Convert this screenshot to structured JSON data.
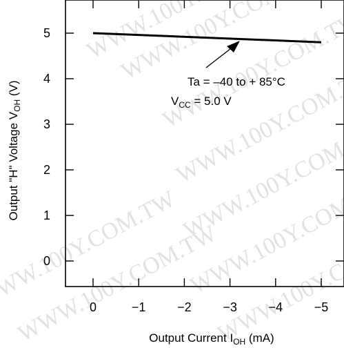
{
  "watermark": "WWW.100Y.COM.TW",
  "chart_data": {
    "type": "line",
    "xlabel": {
      "main": "Output Current I",
      "sub": "OH",
      "unit": " (mA)"
    },
    "ylabel": {
      "main": "Output \"H\" Voltage V",
      "sub": "OH",
      "unit": " (V)"
    },
    "xlim": [
      0,
      -5
    ],
    "ylim": [
      0,
      5
    ],
    "x_ticks": [
      0,
      -1,
      -2,
      -3,
      -4,
      -5
    ],
    "x_tick_labels": [
      "0",
      "−1",
      "−2",
      "−3",
      "−4",
      "−5"
    ],
    "y_ticks": [
      0,
      1,
      2,
      3,
      4,
      5
    ],
    "y_tick_labels": [
      "0",
      "1",
      "2",
      "3",
      "4",
      "5"
    ],
    "series": [
      {
        "x": [
          0,
          -5
        ],
        "y": [
          5.0,
          4.8
        ],
        "color": "#000000"
      }
    ],
    "annotations": {
      "ta": "Ta = –40 to + 85°C",
      "vcc": {
        "main": "V",
        "sub": "CC",
        "rest": " = 5.0 V"
      }
    },
    "grid": false
  }
}
